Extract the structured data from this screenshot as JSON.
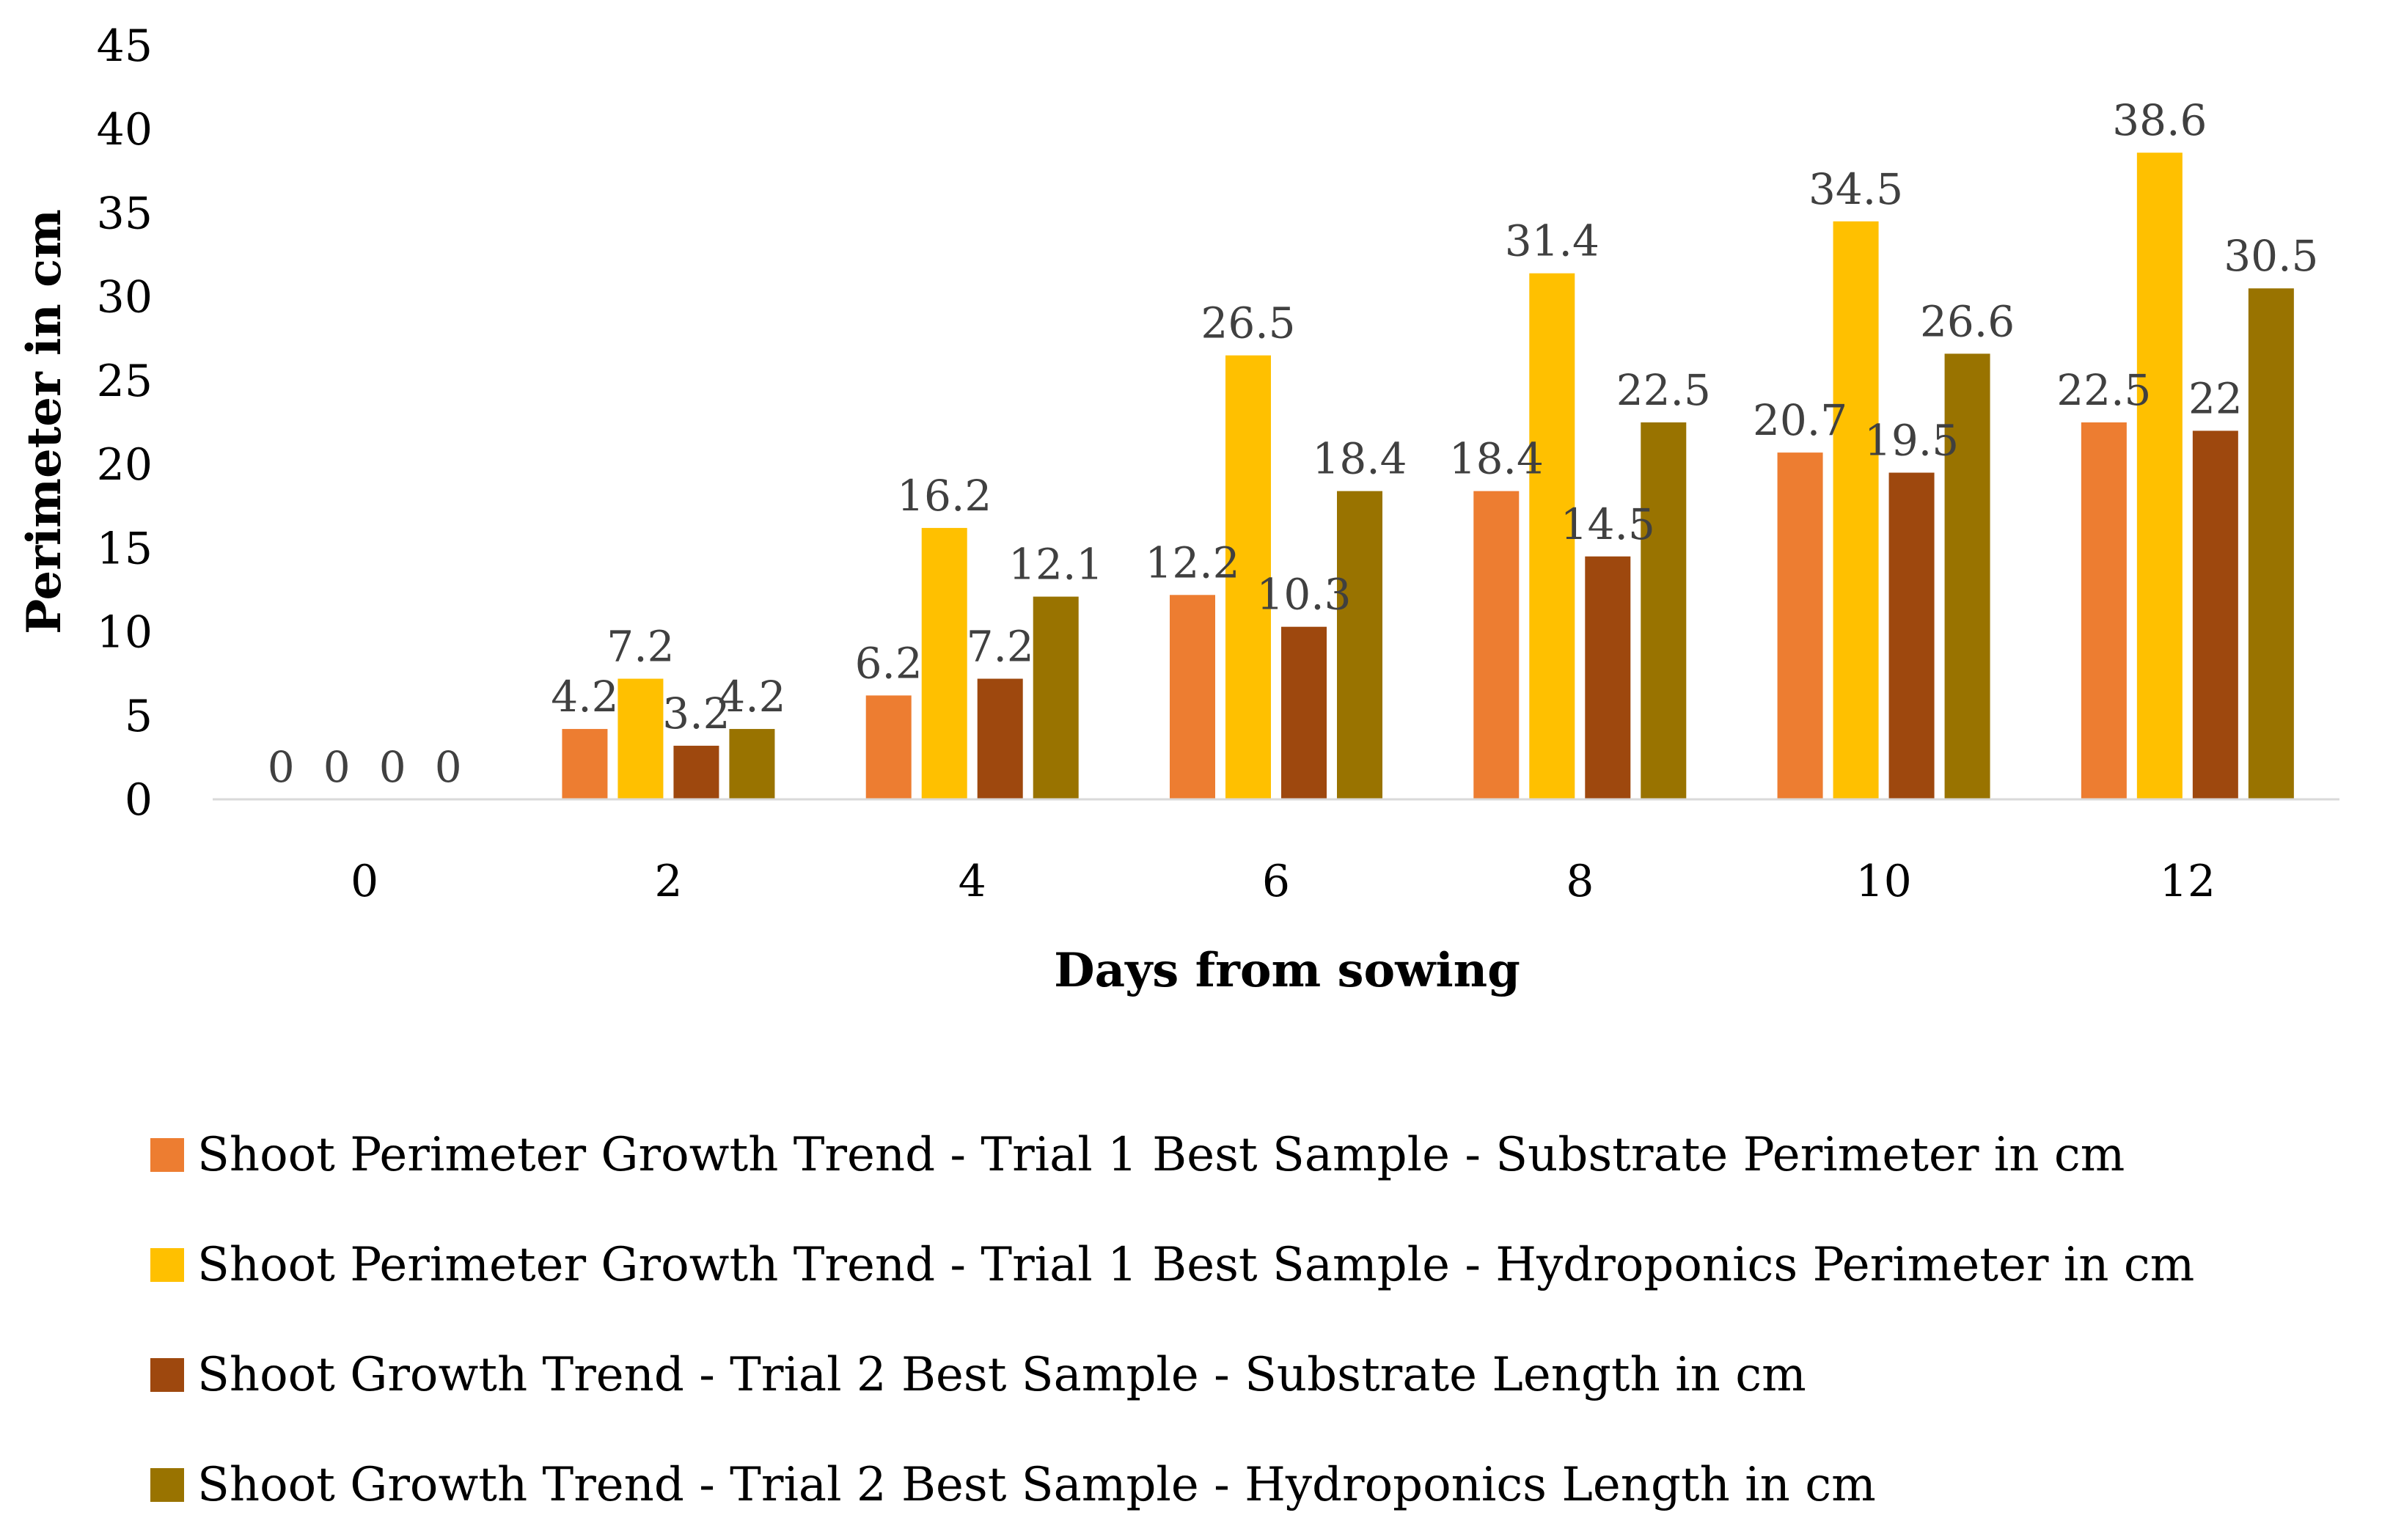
{
  "chart_data": {
    "type": "bar",
    "title": "",
    "xlabel": "Days from sowing",
    "ylabel": "Perimeter in cm",
    "ylim": [
      0,
      45
    ],
    "yticks": [
      "0",
      "5",
      "10",
      "15",
      "20",
      "25",
      "30",
      "35",
      "40",
      "45"
    ],
    "categories": [
      "0",
      "2",
      "4",
      "6",
      "8",
      "10",
      "12"
    ],
    "grid": false,
    "legend_position": "bottom",
    "series": [
      {
        "name": "Shoot Perimeter Growth Trend - Trial 1 Best Sample - Substrate Perimeter in cm",
        "color": "#ED7D31",
        "values": [
          0,
          4.2,
          6.2,
          12.2,
          18.4,
          20.7,
          22.5
        ],
        "labels": [
          "0",
          "4.2",
          "6.2",
          "12.2",
          "18.4",
          "20.7",
          "22.5"
        ]
      },
      {
        "name": "Shoot Perimeter Growth Trend - Trial 1 Best Sample - Hydroponics Perimeter in cm",
        "color": "#FFC000",
        "values": [
          0,
          7.2,
          16.2,
          26.5,
          31.4,
          34.5,
          38.6
        ],
        "labels": [
          "0",
          "7.2",
          "16.2",
          "26.5",
          "31.4",
          "34.5",
          "38.6"
        ]
      },
      {
        "name": "Shoot Growth Trend - Trial 2 Best Sample - Substrate Length in cm",
        "color": "#9E480E",
        "values": [
          0,
          3.2,
          7.2,
          10.3,
          14.5,
          19.5,
          22
        ],
        "labels": [
          "0",
          "3.2",
          "7.2",
          "10.3",
          "14.5",
          "19.5",
          "22"
        ]
      },
      {
        "name": "Shoot Growth Trend - Trial 2 Best Sample - Hydroponics Length in cm",
        "color": "#997300",
        "values": [
          0,
          4.2,
          12.1,
          18.4,
          22.5,
          26.6,
          30.5
        ],
        "labels": [
          "0",
          "4.2",
          "12.1",
          "18.4",
          "22.5",
          "26.6",
          "30.5"
        ]
      }
    ]
  }
}
